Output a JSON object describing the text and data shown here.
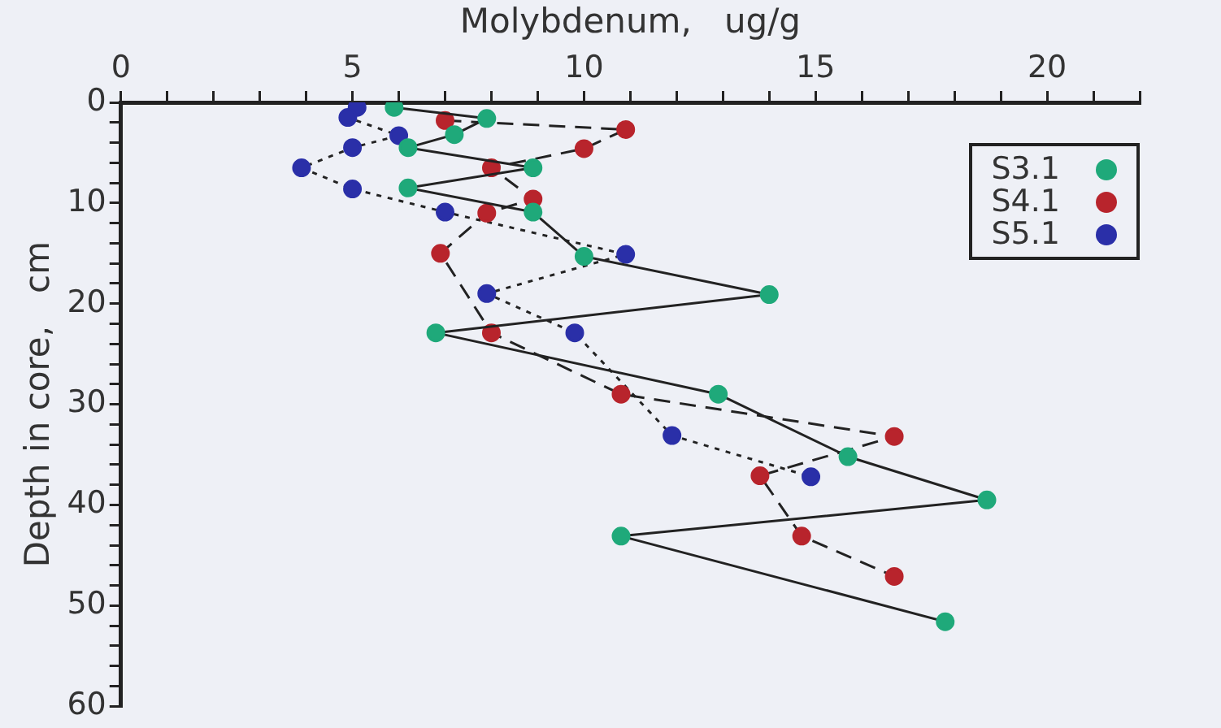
{
  "chart_data": {
    "type": "line",
    "xlabel": "Molybdenum,   ug/g",
    "ylabel": "Depth in core,   cm",
    "xlim": [
      0,
      22
    ],
    "xticks": [
      0,
      {
        "value": 1,
        "label": null
      },
      {
        "value": 2,
        "label": null
      },
      {
        "value": 3,
        "label": null
      },
      {
        "value": 4,
        "label": null
      },
      5,
      {
        "value": 6,
        "label": null
      },
      {
        "value": 7,
        "label": null
      },
      {
        "value": 8,
        "label": null
      },
      {
        "value": 9,
        "label": null
      },
      10,
      {
        "value": 11,
        "label": null
      },
      {
        "value": 12,
        "label": null
      },
      {
        "value": 13,
        "label": null
      },
      {
        "value": 14,
        "label": null
      },
      15,
      {
        "value": 16,
        "label": null
      },
      {
        "value": 17,
        "label": null
      },
      {
        "value": 18,
        "label": null
      },
      {
        "value": 19,
        "label": null
      },
      20,
      {
        "value": 21,
        "label": null
      },
      {
        "value": 22,
        "label": null
      }
    ],
    "ylim": [
      60,
      0
    ],
    "yticks": [
      0,
      {
        "value": 2,
        "label": null
      },
      {
        "value": 4,
        "label": null
      },
      {
        "value": 6,
        "label": null
      },
      {
        "value": 8,
        "label": null
      },
      10,
      {
        "value": 12,
        "label": null
      },
      {
        "value": 14,
        "label": null
      },
      {
        "value": 16,
        "label": null
      },
      {
        "value": 18,
        "label": null
      },
      20,
      {
        "value": 22,
        "label": null
      },
      {
        "value": 24,
        "label": null
      },
      {
        "value": 26,
        "label": null
      },
      {
        "value": 28,
        "label": null
      },
      30,
      {
        "value": 32,
        "label": null
      },
      {
        "value": 34,
        "label": null
      },
      {
        "value": 36,
        "label": null
      },
      {
        "value": 38,
        "label": null
      },
      40,
      {
        "value": 42,
        "label": null
      },
      {
        "value": 44,
        "label": null
      },
      {
        "value": 46,
        "label": null
      },
      {
        "value": 48,
        "label": null
      },
      50,
      {
        "value": 52,
        "label": null
      },
      {
        "value": 54,
        "label": null
      },
      {
        "value": 56,
        "label": null
      },
      {
        "value": 58,
        "label": null
      },
      60
    ],
    "grid": false,
    "legend": "top right",
    "marker": "circle",
    "series": [
      {
        "name": "S3.1",
        "color": "#1fa97a",
        "line_style": "solid",
        "x": [
          5.9,
          7.9,
          7.2,
          6.2,
          8.9,
          6.2,
          8.9,
          10,
          14,
          6.8,
          12.9,
          15.7,
          18.7,
          10.8,
          17.8
        ],
        "values": [
          0.5,
          1.6,
          3.2,
          4.5,
          6.5,
          8.5,
          10.9,
          15.3,
          19.1,
          22.9,
          29,
          35.2,
          39.5,
          43.1,
          51.6
        ]
      },
      {
        "name": "S4.1",
        "color": "#b8242c",
        "line_style": "dashed",
        "x": [
          7,
          10.9,
          10,
          8,
          8.9,
          7.9,
          6.9,
          8,
          10.8,
          16.7,
          13.8,
          14.7,
          16.7
        ],
        "values": [
          1.8,
          2.7,
          4.6,
          6.5,
          9.6,
          11,
          15,
          22.9,
          29,
          33.2,
          37.1,
          43.1,
          47.1
        ]
      },
      {
        "name": "S5.1",
        "color": "#2a2fa8",
        "line_style": "dotted",
        "x": [
          5.1,
          4.9,
          6,
          5,
          3.9,
          5,
          7,
          10.9,
          7.9,
          9.8,
          11.9,
          14.9
        ],
        "values": [
          0.5,
          1.5,
          3.3,
          4.5,
          6.5,
          8.6,
          10.9,
          15.1,
          19,
          22.9,
          33.1,
          37.2
        ]
      }
    ]
  }
}
